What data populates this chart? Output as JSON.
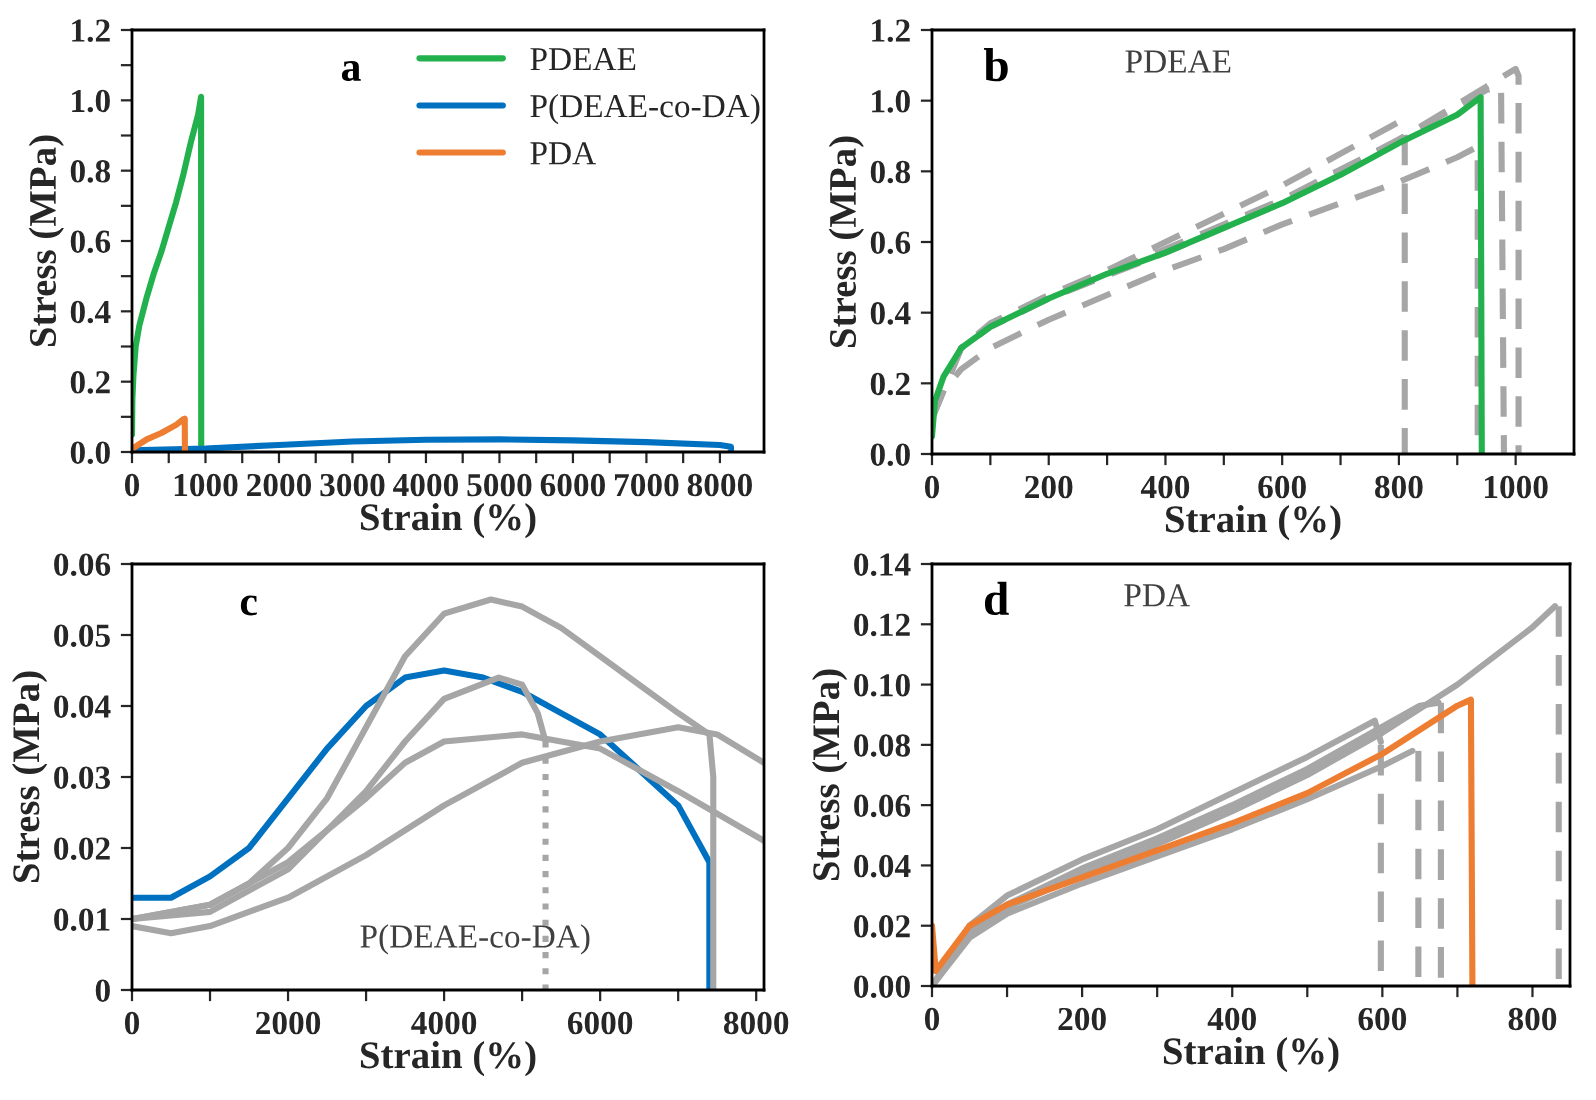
{
  "chart_data": [
    {
      "type": "line",
      "xlabel": "Strain (%)",
      "ylabel": "Stress (MPa)",
      "annotations": [
        "a"
      ],
      "legend": "top",
      "grid": false,
      "xlim": [
        0,
        8600
      ],
      "xticks": [
        0,
        {
          "value": 500,
          "label": null
        },
        1000,
        {
          "value": 1500,
          "label": null
        },
        2000,
        {
          "value": 2500,
          "label": null
        },
        3000,
        {
          "value": 3500,
          "label": null
        },
        4000,
        {
          "value": 4500,
          "label": null
        },
        5000,
        {
          "value": 5500,
          "label": null
        },
        6000,
        {
          "value": 6500,
          "label": null
        },
        7000,
        {
          "value": 7500,
          "label": null
        },
        8000
      ],
      "ylim": [
        0,
        1.2
      ],
      "yticks": [
        {
          "value": 0,
          "label": "0.0"
        },
        {
          "value": 0.1,
          "label": null
        },
        0.2,
        {
          "value": 0.3,
          "label": null
        },
        0.4,
        {
          "value": 0.5,
          "label": null
        },
        0.6,
        {
          "value": 0.7,
          "label": null
        },
        0.8,
        {
          "value": 0.9,
          "label": null
        },
        {
          "value": 1,
          "label": "1.0"
        },
        {
          "value": 1.1,
          "label": null
        },
        1.2
      ],
      "series": [
        {
          "name": "PDEAE",
          "color": "#22b14c",
          "line_style": "solid",
          "x": [
            0,
            5,
            20,
            50,
            100,
            200,
            300,
            400,
            500,
            600,
            700,
            800,
            900,
            940,
            942
          ],
          "values": [
            0.05,
            0.15,
            0.22,
            0.3,
            0.36,
            0.44,
            0.51,
            0.57,
            0.64,
            0.71,
            0.79,
            0.88,
            0.96,
            1.01,
            0
          ]
        },
        {
          "name": "P(DEAE-co-DA)",
          "color": "#0070c0",
          "line_style": "solid",
          "x": [
            0,
            1000,
            2000,
            3000,
            4000,
            5000,
            6000,
            7000,
            8000,
            8150,
            8150
          ],
          "values": [
            0.005,
            0.01,
            0.02,
            0.03,
            0.035,
            0.036,
            0.033,
            0.028,
            0.02,
            0.015,
            0
          ]
        },
        {
          "name": "PDA",
          "color": "#ed7d31",
          "line_style": "solid",
          "x": [
            0,
            10,
            200,
            400,
            600,
            700,
            718,
            720
          ],
          "values": [
            0,
            0.01,
            0.036,
            0.054,
            0.077,
            0.093,
            0.095,
            0
          ]
        }
      ]
    },
    {
      "type": "line",
      "xlabel": "Strain (%)",
      "ylabel": "Stress (MPa)",
      "annotations": [
        "b",
        "PDEAE"
      ],
      "grid": false,
      "xlim": [
        0,
        1100
      ],
      "xticks": [
        0,
        {
          "value": 100,
          "label": null
        },
        200,
        {
          "value": 300,
          "label": null
        },
        400,
        {
          "value": 500,
          "label": null
        },
        600,
        {
          "value": 700,
          "label": null
        },
        800,
        {
          "value": 900,
          "label": null
        },
        1000
      ],
      "ylim": [
        0,
        1.2
      ],
      "yticks": [
        {
          "value": 0,
          "label": "0.0"
        },
        0.2,
        0.4,
        0.6,
        0.8,
        {
          "value": 1,
          "label": "1.0"
        },
        1.2
      ],
      "series": [
        {
          "color": "#a6a6a6",
          "line_style": "dashed",
          "x": [
            0,
            20,
            50,
            100,
            200,
            300,
            400,
            500,
            600,
            700,
            800,
            810,
            810
          ],
          "values": [
            0.1,
            0.2,
            0.3,
            0.37,
            0.45,
            0.52,
            0.6,
            0.68,
            0.76,
            0.85,
            0.94,
            0.93,
            0
          ]
        },
        {
          "color": "#a6a6a6",
          "line_style": "dashed",
          "x": [
            0,
            20,
            50,
            100,
            200,
            300,
            400,
            500,
            600,
            700,
            800,
            900,
            935,
            935
          ],
          "values": [
            0.1,
            0.18,
            0.24,
            0.3,
            0.38,
            0.45,
            0.52,
            0.58,
            0.65,
            0.71,
            0.77,
            0.84,
            0.87,
            0
          ]
        },
        {
          "color": "#a6a6a6",
          "line_style": "dashed",
          "x": [
            0,
            50,
            100,
            200,
            400,
            600,
            800,
            950,
            975,
            980
          ],
          "values": [
            0.1,
            0.3,
            0.36,
            0.44,
            0.57,
            0.71,
            0.89,
            1.03,
            1.04,
            0
          ]
        },
        {
          "color": "#a6a6a6",
          "line_style": "dashed",
          "x": [
            0,
            50,
            100,
            200,
            400,
            600,
            800,
            950,
            1000,
            1005,
            1005
          ],
          "values": [
            0.1,
            0.3,
            0.36,
            0.44,
            0.58,
            0.72,
            0.89,
            1.04,
            1.09,
            1.07,
            0
          ]
        },
        {
          "color": "#22b14c",
          "line_style": "solid",
          "x": [
            0,
            5,
            20,
            50,
            100,
            200,
            300,
            400,
            500,
            600,
            700,
            800,
            900,
            940,
            942
          ],
          "values": [
            0.05,
            0.15,
            0.22,
            0.3,
            0.36,
            0.44,
            0.51,
            0.57,
            0.64,
            0.71,
            0.79,
            0.88,
            0.96,
            1.01,
            0
          ]
        }
      ]
    },
    {
      "type": "line",
      "xlabel": "Strain (%)",
      "ylabel": "Stress (MPa)",
      "annotations": [
        "c",
        "P(DEAE-co-DA)"
      ],
      "grid": false,
      "xlim": [
        0,
        8100
      ],
      "xticks": [
        0,
        {
          "value": 1000,
          "label": null
        },
        2000,
        {
          "value": 3000,
          "label": null
        },
        4000,
        {
          "value": 5000,
          "label": null
        },
        6000,
        {
          "value": 7000,
          "label": null
        },
        8000
      ],
      "ylim": [
        0,
        0.06
      ],
      "yticks": [
        0,
        0.01,
        0.02,
        0.03,
        0.04,
        0.05,
        0.06
      ],
      "series": [
        {
          "color": "#0070c0",
          "line_style": "solid",
          "x": [
            0,
            500,
            1000,
            1500,
            2000,
            2500,
            3000,
            3500,
            4000,
            4500,
            5000,
            5500,
            6000,
            6500,
            7000,
            7300,
            7400,
            7400
          ],
          "values": [
            0.013,
            0.013,
            0.016,
            0.02,
            0.027,
            0.034,
            0.04,
            0.044,
            0.045,
            0.044,
            0.042,
            0.039,
            0.036,
            0.031,
            0.026,
            0.02,
            0.018,
            0
          ]
        },
        {
          "color": "#a6a6a6",
          "line_style": "solid",
          "x": [
            0,
            500,
            1000,
            1500,
            2000,
            2500,
            3000,
            3500,
            4000,
            4600,
            5000,
            5500,
            6000,
            6500,
            7000,
            7400,
            7450,
            7450
          ],
          "values": [
            0.01,
            0.011,
            0.012,
            0.015,
            0.02,
            0.027,
            0.037,
            0.047,
            0.053,
            0.055,
            0.054,
            0.051,
            0.047,
            0.043,
            0.039,
            0.036,
            0.03,
            0
          ]
        },
        {
          "color": "#a6a6a6",
          "line_style": "solid",
          "x": [
            0,
            1000,
            2000,
            3000,
            3500,
            4000,
            4700,
            5000,
            5200,
            5300
          ],
          "values": [
            0.01,
            0.011,
            0.017,
            0.028,
            0.035,
            0.041,
            0.044,
            0.043,
            0.039,
            0.035
          ]
        },
        {
          "color": "#a6a6a6",
          "line_style": "dotted",
          "x": [
            5300,
            5300
          ],
          "values": [
            0.035,
            0
          ]
        },
        {
          "color": "#a6a6a6",
          "line_style": "solid",
          "x": [
            0,
            1000,
            2000,
            3000,
            3500,
            4000,
            5000,
            6000,
            7000,
            8100
          ],
          "values": [
            0.01,
            0.012,
            0.018,
            0.027,
            0.032,
            0.035,
            0.036,
            0.034,
            0.028,
            0.021
          ]
        },
        {
          "color": "#a6a6a6",
          "line_style": "solid",
          "x": [
            0,
            500,
            1000,
            2000,
            3000,
            4000,
            5000,
            6000,
            7000,
            7500,
            8100
          ],
          "values": [
            0.009,
            0.008,
            0.009,
            0.013,
            0.019,
            0.026,
            0.032,
            0.035,
            0.037,
            0.036,
            0.032
          ]
        }
      ]
    },
    {
      "type": "line",
      "xlabel": "Strain (%)",
      "ylabel": "Stress (MPa)",
      "annotations": [
        "d",
        "PDA"
      ],
      "grid": false,
      "xlim": [
        0,
        850
      ],
      "xticks": [
        0,
        {
          "value": 100,
          "label": null
        },
        200,
        {
          "value": 300,
          "label": null
        },
        400,
        {
          "value": 500,
          "label": null
        },
        600,
        {
          "value": 700,
          "label": null
        },
        800
      ],
      "ylim": [
        0,
        0.14
      ],
      "yticks": [
        {
          "value": 0,
          "label": "0.00"
        },
        {
          "value": 0.02,
          "label": "0.02"
        },
        {
          "value": 0.04,
          "label": "0.04"
        },
        {
          "value": 0.06,
          "label": "0.06"
        },
        {
          "value": 0.08,
          "label": "0.08"
        },
        {
          "value": 0.1,
          "label": "0.10"
        },
        {
          "value": 0.12,
          "label": "0.12"
        },
        {
          "value": 0.14,
          "label": "0.14"
        }
      ],
      "series": [
        {
          "color": "#a6a6a6",
          "line_style": "solid",
          "x": [
            0,
            50,
            100,
            200,
            300,
            400,
            500,
            600,
            700,
            800,
            830
          ],
          "values": [
            0,
            0.017,
            0.026,
            0.037,
            0.047,
            0.058,
            0.07,
            0.084,
            0.1,
            0.119,
            0.126
          ]
        },
        {
          "color": "#a6a6a6",
          "line_style": "dashed",
          "x": [
            835,
            835
          ],
          "values": [
            0.126,
            0
          ]
        },
        {
          "color": "#a6a6a6",
          "line_style": "solid",
          "x": [
            0,
            50,
            100,
            200,
            300,
            400,
            500,
            600,
            650,
            675
          ],
          "values": [
            0,
            0.018,
            0.027,
            0.039,
            0.049,
            0.06,
            0.072,
            0.086,
            0.093,
            0.094
          ]
        },
        {
          "color": "#a6a6a6",
          "line_style": "dashed",
          "x": [
            678,
            678
          ],
          "values": [
            0.094,
            0
          ]
        },
        {
          "color": "#a6a6a6",
          "line_style": "solid",
          "x": [
            0,
            50,
            100,
            200,
            300,
            400,
            500,
            600,
            640
          ],
          "values": [
            0,
            0.016,
            0.024,
            0.034,
            0.043,
            0.052,
            0.062,
            0.073,
            0.078
          ]
        },
        {
          "color": "#a6a6a6",
          "line_style": "dashed",
          "x": [
            648,
            648
          ],
          "values": [
            0.078,
            0
          ]
        },
        {
          "color": "#a6a6a6",
          "line_style": "solid",
          "x": [
            0,
            50,
            100,
            200,
            300,
            400,
            500,
            590,
            598
          ],
          "values": [
            0,
            0.02,
            0.03,
            0.042,
            0.052,
            0.064,
            0.076,
            0.088,
            0.081
          ]
        },
        {
          "color": "#a6a6a6",
          "line_style": "dashed",
          "x": [
            598,
            598
          ],
          "values": [
            0.08,
            0
          ]
        },
        {
          "color": "#ed7d31",
          "line_style": "solid",
          "x": [
            0,
            5,
            20,
            50,
            100,
            200,
            300,
            400,
            500,
            600,
            700,
            718,
            720
          ],
          "values": [
            0.02,
            0.005,
            0.01,
            0.02,
            0.027,
            0.036,
            0.045,
            0.054,
            0.064,
            0.077,
            0.093,
            0.095,
            0
          ]
        }
      ]
    }
  ]
}
